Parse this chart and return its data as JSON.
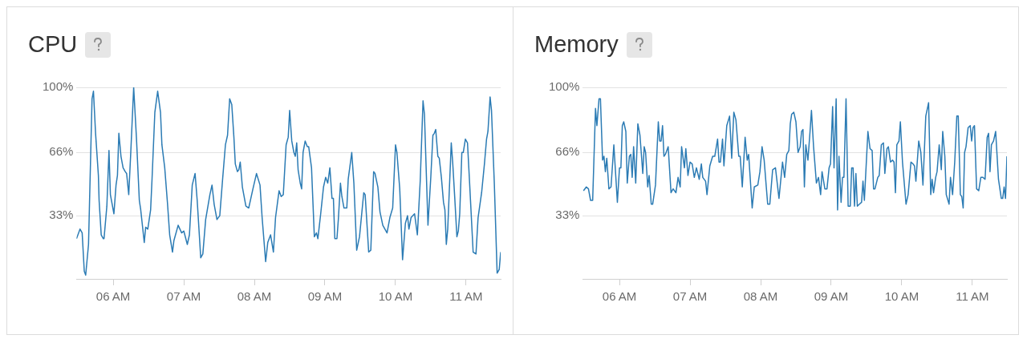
{
  "chart_data": [
    {
      "type": "line",
      "title": "CPU",
      "xlim": [
        5.48,
        11.49
      ],
      "ylim": [
        0,
        100
      ],
      "grid": "y",
      "marker": "none",
      "line_style": "solid",
      "xticks": [
        {
          "value": 6,
          "label": "06 AM"
        },
        {
          "value": 7,
          "label": "07 AM"
        },
        {
          "value": 8,
          "label": "08 AM"
        },
        {
          "value": 9,
          "label": "09 AM"
        },
        {
          "value": 10,
          "label": "10 AM"
        },
        {
          "value": 11,
          "label": "11 AM"
        }
      ],
      "yticks": [
        {
          "value": 33,
          "label": "33%"
        },
        {
          "value": 66,
          "label": "66%"
        },
        {
          "value": 100,
          "label": "100%"
        }
      ],
      "x": [
        5.48,
        5.53,
        5.56,
        5.59,
        5.61,
        5.65,
        5.7,
        5.72,
        5.75,
        5.79,
        5.8,
        5.83,
        5.86,
        5.87,
        5.91,
        5.94,
        5.96,
        6.01,
        6.04,
        6.06,
        6.08,
        6.11,
        6.14,
        6.17,
        6.19,
        6.22,
        6.25,
        6.29,
        6.33,
        6.37,
        6.39,
        6.44,
        6.46,
        6.49,
        6.53,
        6.55,
        6.59,
        6.63,
        6.67,
        6.69,
        6.73,
        6.77,
        6.8,
        6.84,
        6.86,
        6.92,
        6.97,
        7.0,
        7.05,
        7.08,
        7.12,
        7.16,
        7.19,
        7.24,
        7.27,
        7.31,
        7.37,
        7.4,
        7.43,
        7.47,
        7.51,
        7.55,
        7.59,
        7.62,
        7.65,
        7.68,
        7.71,
        7.73,
        7.76,
        7.78,
        7.8,
        7.83,
        7.88,
        7.92,
        7.98,
        8.03,
        8.08,
        8.11,
        8.16,
        8.19,
        8.23,
        8.27,
        8.3,
        8.35,
        8.38,
        8.41,
        8.45,
        8.48,
        8.5,
        8.53,
        8.56,
        8.58,
        8.6,
        8.62,
        8.65,
        8.67,
        8.69,
        8.72,
        8.75,
        8.77,
        8.81,
        8.85,
        8.88,
        8.9,
        8.94,
        8.98,
        9.01,
        9.04,
        9.07,
        9.1,
        9.12,
        9.14,
        9.17,
        9.19,
        9.22,
        9.24,
        9.27,
        9.31,
        9.33,
        9.38,
        9.41,
        9.45,
        9.49,
        9.55,
        9.57,
        9.62,
        9.65,
        9.69,
        9.71,
        9.75,
        9.78,
        9.82,
        9.88,
        9.92,
        9.96,
        10.0,
        10.02,
        10.06,
        10.1,
        10.14,
        10.17,
        10.19,
        10.22,
        10.27,
        10.31,
        10.35,
        10.39,
        10.41,
        10.46,
        10.5,
        10.53,
        10.55,
        10.57,
        10.6,
        10.62,
        10.65,
        10.68,
        10.7,
        10.72,
        10.74,
        10.79,
        10.81,
        10.84,
        10.87,
        10.89,
        10.91,
        10.94,
        10.96,
        10.99,
        11.02,
        11.05,
        11.1,
        11.14,
        11.17,
        11.22,
        11.26,
        11.29,
        11.31,
        11.34,
        11.36,
        11.4,
        11.44,
        11.47,
        11.49
      ],
      "series": [
        {
          "color": "#2b7bb4",
          "values": [
            21,
            26,
            24,
            4,
            2,
            18,
            94,
            98,
            76,
            54,
            41,
            23,
            21,
            21,
            38,
            67,
            44,
            34,
            49,
            54,
            76,
            64,
            58,
            56,
            55,
            44,
            67,
            100,
            73,
            41,
            36,
            19,
            27,
            26,
            36,
            52,
            87,
            98,
            87,
            70,
            58,
            39,
            23,
            14,
            20,
            28,
            24,
            25,
            18,
            23,
            49,
            55,
            41,
            11,
            13,
            31,
            44,
            49,
            39,
            31,
            33,
            52,
            70,
            75,
            94,
            91,
            74,
            60,
            56,
            57,
            61,
            48,
            38,
            37,
            47,
            55,
            49,
            32,
            9,
            19,
            23,
            14,
            32,
            46,
            43,
            44,
            70,
            74,
            88,
            72,
            66,
            64,
            71,
            57,
            50,
            47,
            66,
            72,
            69,
            69,
            58,
            22,
            24,
            21,
            34,
            48,
            53,
            50,
            58,
            42,
            42,
            21,
            21,
            31,
            50,
            43,
            37,
            37,
            52,
            66,
            50,
            15,
            22,
            45,
            44,
            14,
            15,
            56,
            55,
            48,
            35,
            28,
            24,
            32,
            37,
            70,
            66,
            47,
            10,
            29,
            33,
            26,
            32,
            34,
            23,
            51,
            93,
            86,
            28,
            53,
            75,
            76,
            78,
            64,
            63,
            53,
            40,
            36,
            18,
            26,
            71,
            61,
            42,
            22,
            25,
            34,
            66,
            66,
            73,
            71,
            50,
            14,
            13,
            32,
            45,
            60,
            73,
            77,
            95,
            88,
            50,
            3,
            5,
            14
          ]
        }
      ]
    },
    {
      "type": "line",
      "title": "Memory",
      "xlim": [
        5.48,
        11.49
      ],
      "ylim": [
        0,
        100
      ],
      "grid": "y",
      "marker": "none",
      "line_style": "solid",
      "xticks": [
        {
          "value": 6,
          "label": "06 AM"
        },
        {
          "value": 7,
          "label": "07 AM"
        },
        {
          "value": 8,
          "label": "08 AM"
        },
        {
          "value": 9,
          "label": "09 AM"
        },
        {
          "value": 10,
          "label": "10 AM"
        },
        {
          "value": 11,
          "label": "11 AM"
        }
      ],
      "yticks": [
        {
          "value": 33,
          "label": "33%"
        },
        {
          "value": 66,
          "label": "66%"
        },
        {
          "value": 100,
          "label": "100%"
        }
      ],
      "x": [
        5.49,
        5.53,
        5.56,
        5.59,
        5.62,
        5.66,
        5.68,
        5.71,
        5.73,
        5.76,
        5.78,
        5.8,
        5.82,
        5.85,
        5.88,
        5.92,
        5.97,
        6.0,
        6.02,
        6.04,
        6.06,
        6.09,
        6.11,
        6.14,
        6.16,
        6.18,
        6.2,
        6.23,
        6.26,
        6.29,
        6.33,
        6.35,
        6.37,
        6.4,
        6.42,
        6.45,
        6.47,
        6.51,
        6.55,
        6.57,
        6.59,
        6.61,
        6.63,
        6.65,
        6.69,
        6.73,
        6.76,
        6.8,
        6.83,
        6.86,
        6.88,
        6.92,
        6.94,
        6.97,
        7.0,
        7.03,
        7.06,
        7.09,
        7.13,
        7.16,
        7.18,
        7.22,
        7.24,
        7.28,
        7.32,
        7.35,
        7.39,
        7.41,
        7.43,
        7.46,
        7.48,
        7.52,
        7.56,
        7.59,
        7.62,
        7.65,
        7.69,
        7.71,
        7.74,
        7.78,
        7.81,
        7.83,
        7.88,
        7.91,
        7.96,
        7.99,
        8.02,
        8.05,
        8.08,
        8.1,
        8.13,
        8.17,
        8.21,
        8.26,
        8.31,
        8.34,
        8.37,
        8.4,
        8.42,
        8.44,
        8.47,
        8.5,
        8.53,
        8.56,
        8.58,
        8.6,
        8.62,
        8.64,
        8.67,
        8.7,
        8.72,
        8.75,
        8.79,
        8.82,
        8.85,
        8.87,
        8.91,
        8.94,
        8.97,
        8.99,
        9.02,
        9.04,
        9.07,
        9.09,
        9.11,
        9.14,
        9.16,
        9.18,
        9.21,
        9.24,
        9.27,
        9.29,
        9.31,
        9.33,
        9.35,
        9.37,
        9.4,
        9.43,
        9.45,
        9.47,
        9.52,
        9.55,
        9.58,
        9.6,
        9.62,
        9.66,
        9.68,
        9.71,
        9.74,
        9.76,
        9.79,
        9.81,
        9.84,
        9.87,
        9.89,
        9.91,
        9.93,
        9.96,
        9.98,
        10.01,
        10.06,
        10.09,
        10.13,
        10.16,
        10.18,
        10.2,
        10.24,
        10.27,
        10.3,
        10.34,
        10.38,
        10.41,
        10.43,
        10.45,
        10.48,
        10.5,
        10.53,
        10.56,
        10.58,
        10.61,
        10.63,
        10.67,
        10.69,
        10.72,
        10.75,
        10.78,
        10.8,
        10.83,
        10.85,
        10.87,
        10.89,
        10.91,
        10.94,
        10.97,
        10.99,
        11.01,
        11.03,
        11.06,
        11.09,
        11.12,
        11.15,
        11.18,
        11.21,
        11.23,
        11.25,
        11.27,
        11.3,
        11.33,
        11.37,
        11.41,
        11.43,
        11.45,
        11.47,
        11.49
      ],
      "series": [
        {
          "color": "#2b7bb4",
          "values": [
            46,
            48,
            47,
            41,
            41,
            89,
            80,
            94,
            94,
            62,
            64,
            56,
            63,
            47,
            48,
            70,
            40,
            58,
            58,
            80,
            82,
            77,
            50,
            64,
            65,
            53,
            69,
            50,
            81,
            75,
            55,
            69,
            66,
            48,
            54,
            39,
            39,
            49,
            82,
            72,
            72,
            80,
            64,
            65,
            69,
            45,
            47,
            45,
            53,
            48,
            69,
            58,
            68,
            54,
            61,
            60,
            53,
            58,
            52,
            60,
            53,
            51,
            44,
            59,
            64,
            64,
            73,
            61,
            61,
            73,
            59,
            80,
            85,
            63,
            87,
            83,
            64,
            64,
            48,
            74,
            62,
            65,
            37,
            48,
            49,
            56,
            69,
            62,
            48,
            39,
            39,
            57,
            58,
            42,
            61,
            53,
            65,
            67,
            81,
            86,
            87,
            82,
            66,
            69,
            77,
            78,
            48,
            70,
            62,
            77,
            88,
            69,
            50,
            53,
            44,
            56,
            47,
            47,
            58,
            60,
            90,
            58,
            94,
            36,
            64,
            40,
            53,
            53,
            94,
            38,
            38,
            58,
            58,
            38,
            55,
            38,
            39,
            40,
            51,
            41,
            77,
            68,
            67,
            47,
            47,
            53,
            54,
            70,
            71,
            55,
            68,
            69,
            61,
            62,
            61,
            45,
            70,
            72,
            82,
            61,
            39,
            44,
            61,
            60,
            59,
            51,
            72,
            66,
            49,
            85,
            92,
            44,
            52,
            45,
            53,
            56,
            70,
            57,
            77,
            64,
            44,
            39,
            53,
            44,
            61,
            85,
            85,
            44,
            43,
            37,
            66,
            69,
            79,
            80,
            72,
            79,
            80,
            47,
            46,
            53,
            53,
            52,
            74,
            76,
            56,
            70,
            72,
            77,
            52,
            42,
            42,
            48,
            42,
            64
          ]
        }
      ]
    }
  ]
}
